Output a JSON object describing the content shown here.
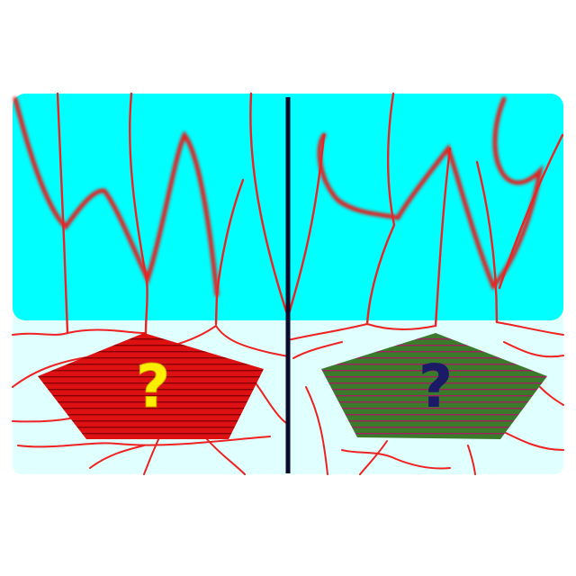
{
  "colors": {
    "background": "#ffffff",
    "sky": "#00ffff",
    "ground": "#e0ffff",
    "line_red": "#ee2222",
    "divider": "#0a0a2a",
    "left_pentagon_fill": "#dd1111",
    "left_pentagon_stripe": "#880000",
    "right_pentagon_fill": "#3a7a2a",
    "right_pentagon_stripe": "#a02060",
    "left_question_color": "#ffee00",
    "right_question_color": "#1a1a66"
  },
  "left_panel": {
    "question_mark": "?",
    "icon": "pentagon-red-striped"
  },
  "right_panel": {
    "question_mark": "?",
    "icon": "pentagon-green-striped"
  }
}
